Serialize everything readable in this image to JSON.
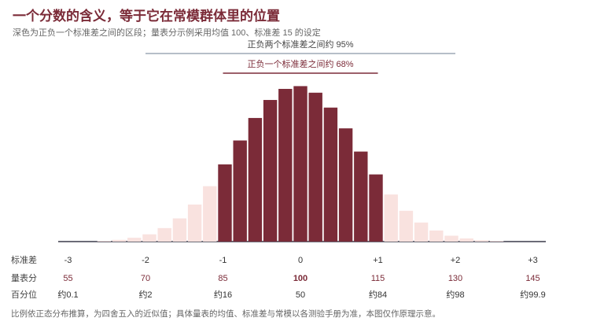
{
  "title": "一个分数的含义，等于它在常模群体里的位置",
  "subtitle": "深色为正负一个标准差之间的区段；量表分示例采用均值 100、标准差 15 的设定",
  "note": "比例依正态分布推算，为四舍五入的近似值；具体量表的均值、标准差与常模以各测验手册为准，本图仅作原理示意。",
  "colors": {
    "dark": "#7b2b38",
    "light": "#f9e2df",
    "axis": "#3a3a4a",
    "band95": "#8a97a6",
    "band68": "#7b2b38"
  },
  "chart_data": {
    "type": "bar",
    "series": [
      {
        "values": [
          0.2,
          0.5,
          1.1,
          2.1,
          3.9,
          6.7,
          10.7,
          16.0,
          22.3,
          29.2,
          35.7,
          40.9,
          44.1,
          44.9,
          43.0,
          38.7,
          32.7,
          26.0,
          19.4,
          13.6,
          8.9,
          5.5,
          3.2,
          1.7,
          0.9,
          0.4,
          0.2
        ]
      }
    ],
    "dark_range": [
      8,
      18
    ],
    "band_95_label": "正负两个标准差之间约 95%",
    "band_68_label": "正负一个标准差之间约 68%",
    "rows": {
      "sd": {
        "label": "标准差",
        "values": [
          "-3",
          "-2",
          "-1",
          "0",
          "+1",
          "+2",
          "+3"
        ]
      },
      "score": {
        "label": "量表分",
        "values": [
          "55",
          "70",
          "85",
          "100",
          "115",
          "130",
          "145"
        ]
      },
      "percentile": {
        "label": "百分位",
        "values": [
          "约0.1",
          "约2",
          "约16",
          "50",
          "约84",
          "约98",
          "约99.9"
        ]
      }
    }
  }
}
